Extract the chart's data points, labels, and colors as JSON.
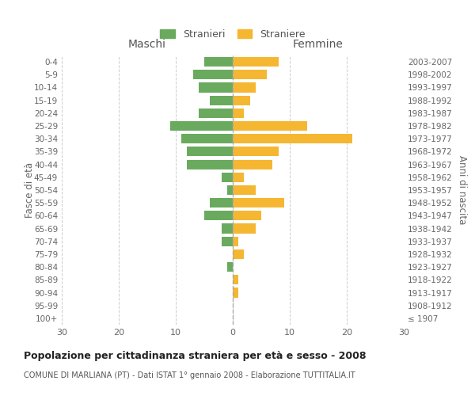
{
  "age_groups": [
    "100+",
    "95-99",
    "90-94",
    "85-89",
    "80-84",
    "75-79",
    "70-74",
    "65-69",
    "60-64",
    "55-59",
    "50-54",
    "45-49",
    "40-44",
    "35-39",
    "30-34",
    "25-29",
    "20-24",
    "15-19",
    "10-14",
    "5-9",
    "0-4"
  ],
  "birth_years": [
    "≤ 1907",
    "1908-1912",
    "1913-1917",
    "1918-1922",
    "1923-1927",
    "1928-1932",
    "1933-1937",
    "1938-1942",
    "1943-1947",
    "1948-1952",
    "1953-1957",
    "1958-1962",
    "1963-1967",
    "1968-1972",
    "1973-1977",
    "1978-1982",
    "1983-1987",
    "1988-1992",
    "1993-1997",
    "1998-2002",
    "2003-2007"
  ],
  "maschi": [
    0,
    0,
    0,
    0,
    1,
    0,
    2,
    2,
    5,
    4,
    1,
    2,
    8,
    8,
    9,
    11,
    6,
    4,
    6,
    7,
    5
  ],
  "femmine": [
    0,
    0,
    1,
    1,
    0,
    2,
    1,
    4,
    5,
    9,
    4,
    2,
    7,
    8,
    21,
    13,
    2,
    3,
    4,
    6,
    8
  ],
  "color_maschi": "#6aaa5e",
  "color_femmine": "#f5b731",
  "title": "Popolazione per cittadinanza straniera per età e sesso - 2008",
  "subtitle": "COMUNE DI MARLIANA (PT) - Dati ISTAT 1° gennaio 2008 - Elaborazione TUTTITALIA.IT",
  "xlabel_left": "Maschi",
  "xlabel_right": "Femmine",
  "ylabel_left": "Fasce di età",
  "ylabel_right": "Anni di nascita",
  "legend_maschi": "Stranieri",
  "legend_femmine": "Straniere",
  "xlim": 30,
  "background_color": "#ffffff",
  "grid_color": "#cccccc"
}
